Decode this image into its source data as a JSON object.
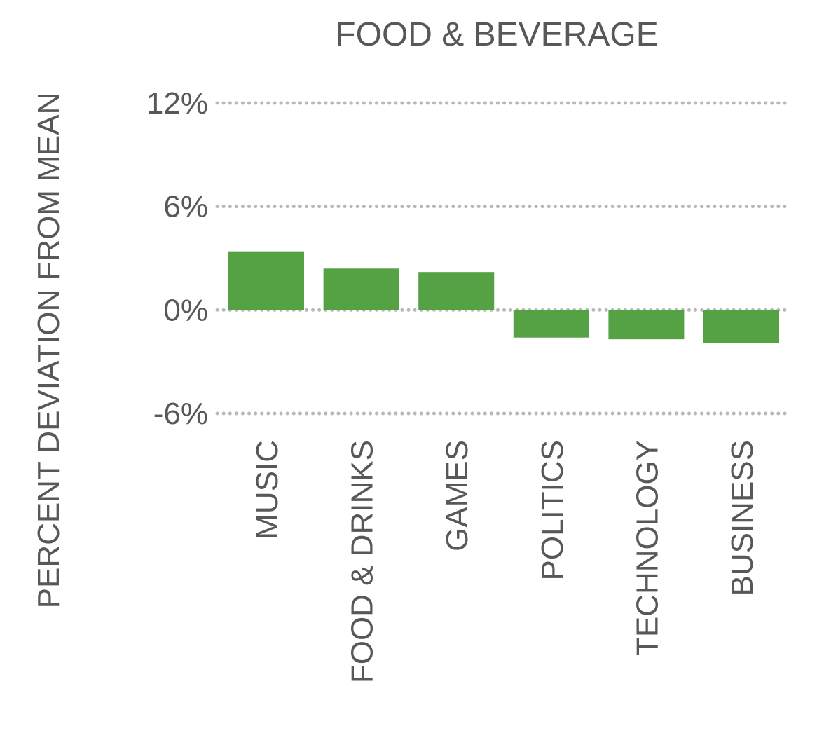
{
  "chart_data": {
    "type": "bar",
    "title": "FOOD & BEVERAGE",
    "xlabel": "",
    "ylabel": "PERCENT DEVIATION FROM MEAN",
    "categories": [
      "MUSIC",
      "FOOD & DRINKS",
      "GAMES",
      "POLITICS",
      "TECHNOLOGY",
      "BUSINESS"
    ],
    "values": [
      3.4,
      2.4,
      2.2,
      -1.6,
      -1.7,
      -1.9
    ],
    "ylim": [
      -6,
      12
    ],
    "yticks": [
      12,
      6,
      0,
      -6
    ],
    "ytick_labels": [
      "12%",
      "6%",
      "0%",
      "-6%"
    ],
    "grid": true,
    "grid_style": "dotted",
    "colors": {
      "bar": "#55a245",
      "text": "#58585a",
      "grid": "#b8b8b8"
    }
  }
}
